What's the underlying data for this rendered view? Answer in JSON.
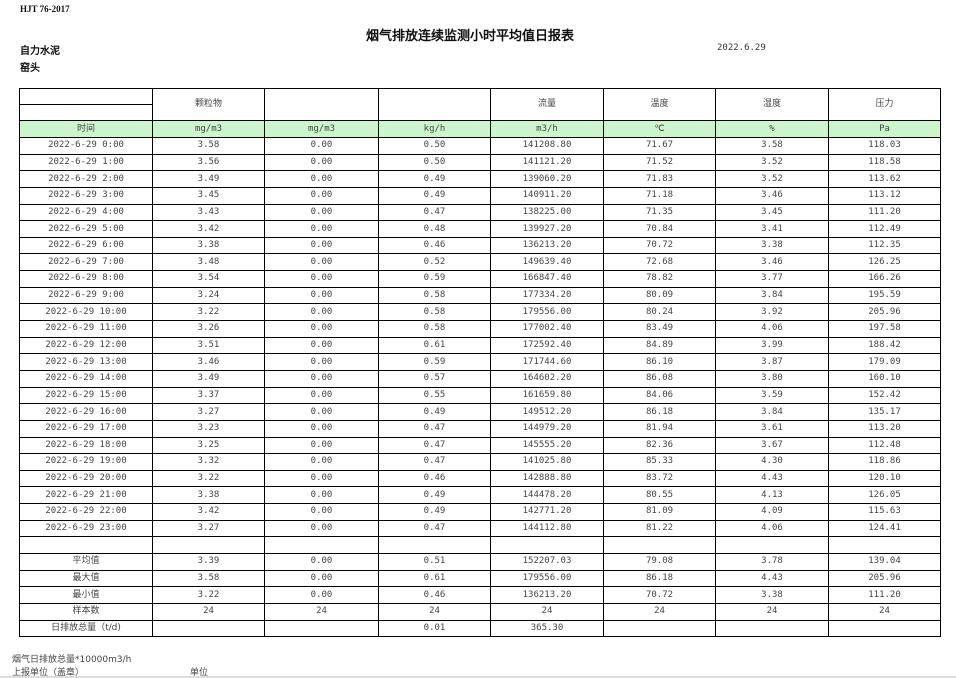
{
  "header": {
    "standard": "HJT  76-2017",
    "title": "烟气排放连续监测小时平均值日报表",
    "company": "自力水泥",
    "source": "窑头",
    "date": "2022.6.29"
  },
  "columns": [
    {
      "name": "",
      "unit": "时间"
    },
    {
      "name": "颗粒物",
      "unit": "mg/m3"
    },
    {
      "name": "",
      "unit": "mg/m3"
    },
    {
      "name": "",
      "unit": "kg/h"
    },
    {
      "name": "流量",
      "unit": "m3/h"
    },
    {
      "name": "温度",
      "unit": "℃"
    },
    {
      "name": "湿度",
      "unit": "%"
    },
    {
      "name": "压力",
      "unit": "Pa"
    }
  ],
  "rows": [
    [
      "2022-6-29 0:00",
      "3.58",
      "0.00",
      "0.50",
      "141208.80",
      "71.67",
      "3.58",
      "118.03"
    ],
    [
      "2022-6-29 1:00",
      "3.56",
      "0.00",
      "0.50",
      "141121.20",
      "71.52",
      "3.52",
      "118.58"
    ],
    [
      "2022-6-29 2:00",
      "3.49",
      "0.00",
      "0.49",
      "139060.20",
      "71.83",
      "3.52",
      "113.62"
    ],
    [
      "2022-6-29 3:00",
      "3.45",
      "0.00",
      "0.49",
      "140911.20",
      "71.18",
      "3.46",
      "113.12"
    ],
    [
      "2022-6-29 4:00",
      "3.43",
      "0.00",
      "0.47",
      "138225.00",
      "71.35",
      "3.45",
      "111.20"
    ],
    [
      "2022-6-29 5:00",
      "3.42",
      "0.00",
      "0.48",
      "139927.20",
      "70.84",
      "3.41",
      "112.49"
    ],
    [
      "2022-6-29 6:00",
      "3.38",
      "0.00",
      "0.46",
      "136213.20",
      "70.72",
      "3.38",
      "112.35"
    ],
    [
      "2022-6-29 7:00",
      "3.48",
      "0.00",
      "0.52",
      "149639.40",
      "72.68",
      "3.46",
      "126.25"
    ],
    [
      "2022-6-29 8:00",
      "3.54",
      "0.00",
      "0.59",
      "166847.40",
      "78.82",
      "3.77",
      "166.26"
    ],
    [
      "2022-6-29 9:00",
      "3.24",
      "0.00",
      "0.58",
      "177334.20",
      "80.09",
      "3.84",
      "195.59"
    ],
    [
      "2022-6-29 10:00",
      "3.22",
      "0.00",
      "0.58",
      "179556.00",
      "80.24",
      "3.92",
      "205.96"
    ],
    [
      "2022-6-29 11:00",
      "3.26",
      "0.00",
      "0.58",
      "177002.40",
      "83.49",
      "4.06",
      "197.58"
    ],
    [
      "2022-6-29 12:00",
      "3.51",
      "0.00",
      "0.61",
      "172592.40",
      "84.89",
      "3.99",
      "188.42"
    ],
    [
      "2022-6-29 13:00",
      "3.46",
      "0.00",
      "0.59",
      "171744.60",
      "86.10",
      "3.87",
      "179.09"
    ],
    [
      "2022-6-29 14:00",
      "3.49",
      "0.00",
      "0.57",
      "164602.20",
      "86.08",
      "3.80",
      "160.10"
    ],
    [
      "2022-6-29 15:00",
      "3.37",
      "0.00",
      "0.55",
      "161659.80",
      "84.06",
      "3.59",
      "152.42"
    ],
    [
      "2022-6-29 16:00",
      "3.27",
      "0.00",
      "0.49",
      "149512.20",
      "86.18",
      "3.84",
      "135.17"
    ],
    [
      "2022-6-29 17:00",
      "3.23",
      "0.00",
      "0.47",
      "144979.20",
      "81.94",
      "3.61",
      "113.20"
    ],
    [
      "2022-6-29 18:00",
      "3.25",
      "0.00",
      "0.47",
      "145555.20",
      "82.36",
      "3.67",
      "112.48"
    ],
    [
      "2022-6-29 19:00",
      "3.32",
      "0.00",
      "0.47",
      "141025.80",
      "85.33",
      "4.30",
      "118.86"
    ],
    [
      "2022-6-29 20:00",
      "3.22",
      "0.00",
      "0.46",
      "142888.80",
      "83.72",
      "4.43",
      "120.10"
    ],
    [
      "2022-6-29 21:00",
      "3.38",
      "0.00",
      "0.49",
      "144478.20",
      "80.55",
      "4.13",
      "126.05"
    ],
    [
      "2022-6-29 22:00",
      "3.42",
      "0.00",
      "0.49",
      "142771.20",
      "81.09",
      "4.09",
      "115.63"
    ],
    [
      "2022-6-29 23:00",
      "3.27",
      "0.00",
      "0.47",
      "144112.80",
      "81.22",
      "4.06",
      "124.41"
    ]
  ],
  "summary": [
    [
      "平均值",
      "3.39",
      "0.00",
      "0.51",
      "152207.03",
      "79.08",
      "3.78",
      "139.04"
    ],
    [
      "最大值",
      "3.58",
      "0.00",
      "0.61",
      "179556.00",
      "86.18",
      "4.43",
      "205.96"
    ],
    [
      "最小值",
      "3.22",
      "0.00",
      "0.46",
      "136213.20",
      "70.72",
      "3.38",
      "111.20"
    ],
    [
      "样本数",
      "24",
      "24",
      "24",
      "24",
      "24",
      "24",
      "24"
    ],
    [
      "日排放总量（t/d)",
      "",
      "",
      "0.01",
      "365.30",
      "",
      "",
      ""
    ]
  ],
  "footer": {
    "note": "烟气日排放总量*10000m3/h",
    "report_unit": "上报单位（盖章）",
    "unit_label": "单位"
  }
}
